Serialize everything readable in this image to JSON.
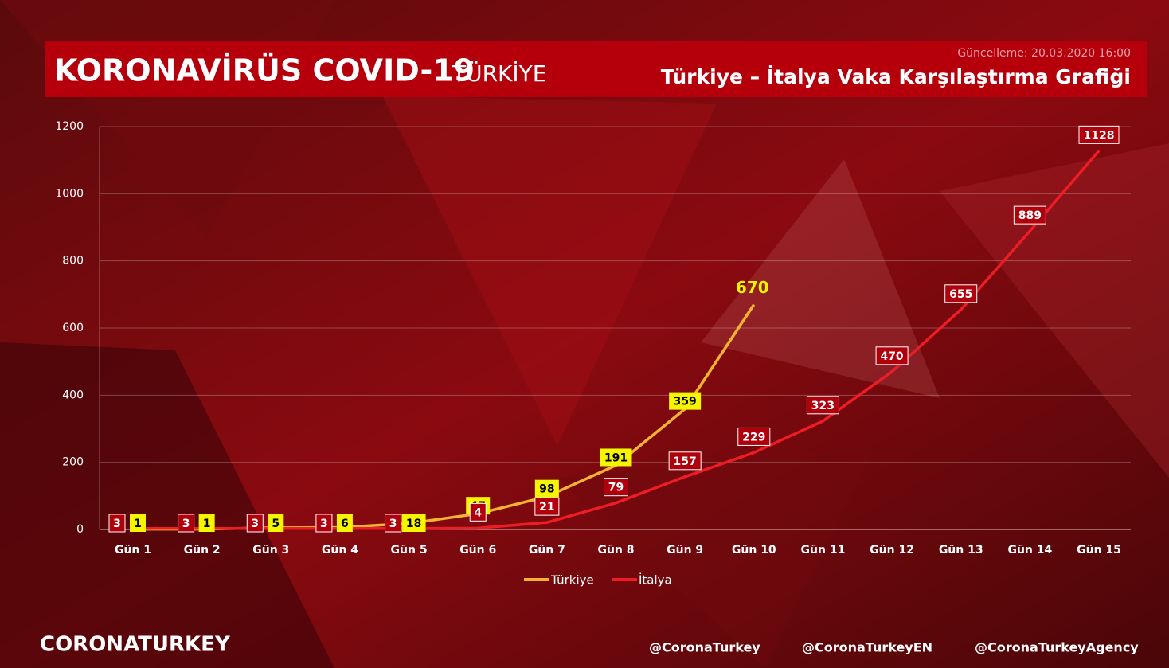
{
  "header": {
    "title": "KORONAVİRÜS COVID-19",
    "country": "TÜRKİYE",
    "updated": "Güncelleme: 20.03.2020 16:00",
    "subtitle": "Türkiye – İtalya Vaka Karşılaştırma Grafiği"
  },
  "chart_data": {
    "type": "line",
    "categories": [
      "Gün 1",
      "Gün 2",
      "Gün 3",
      "Gün 4",
      "Gün 5",
      "Gün 6",
      "Gün 7",
      "Gün 8",
      "Gün 9",
      "Gün 10",
      "Gün 11",
      "Gün 12",
      "Gün 13",
      "Gün 14",
      "Gün 15"
    ],
    "series": [
      {
        "name": "Türkiye",
        "color": "#f2b233",
        "label_color": "#f5f500",
        "values": [
          1,
          1,
          5,
          6,
          18,
          47,
          98,
          191,
          359,
          670,
          null,
          null,
          null,
          null,
          null
        ]
      },
      {
        "name": "İtalya",
        "color": "#ee1c25",
        "label_color": "#b0000c",
        "values": [
          3,
          3,
          3,
          3,
          3,
          4,
          21,
          79,
          157,
          229,
          323,
          470,
          655,
          889,
          1128
        ]
      }
    ],
    "ylim": [
      0,
      1200
    ],
    "yticks": [
      0,
      200,
      400,
      600,
      800,
      1000,
      1200
    ],
    "grid": true,
    "legend": "bottom"
  },
  "footer": {
    "brand": "CORONATURKEY",
    "handles": [
      "@CoronaTurkey",
      "@CoronaTurkeyEN",
      "@CoronaTurkeyAgency"
    ]
  }
}
